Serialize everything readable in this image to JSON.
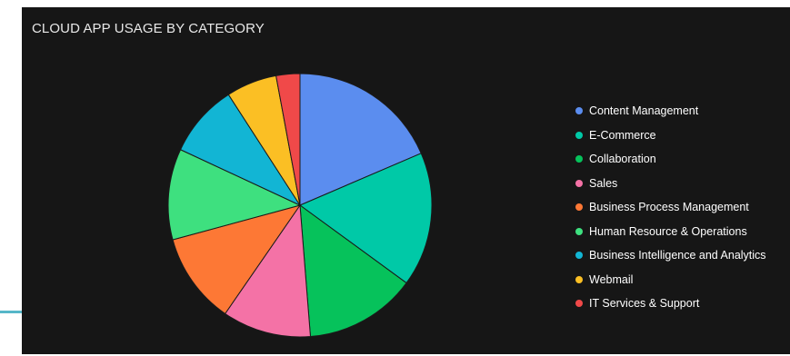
{
  "panel": {
    "title": "CLOUD APP USAGE BY CATEGORY",
    "background": "#161616"
  },
  "chart_data": {
    "type": "pie",
    "title": "CLOUD APP USAGE BY CATEGORY",
    "legend_position": "right",
    "start_angle": "12 o'clock, clockwise",
    "slices": [
      {
        "label": "Content Management",
        "value": 19.1,
        "color": "#5b8def"
      },
      {
        "label": "E-Commerce",
        "value": 17.0,
        "color": "#00c9a7"
      },
      {
        "label": "Collaboration",
        "value": 14.1,
        "color": "#06c25b"
      },
      {
        "label": "Sales",
        "value": 11.2,
        "color": "#f472a6"
      },
      {
        "label": "Business Process Management",
        "value": 11.5,
        "color": "#fd7835"
      },
      {
        "label": "Human Resource & Operations",
        "value": 11.5,
        "color": "#3ee07f"
      },
      {
        "label": "Business Intelligence and Analytics",
        "value": 9.2,
        "color": "#12b5d4"
      },
      {
        "label": "Webmail",
        "value": 6.4,
        "color": "#fbbf24"
      },
      {
        "label": "IT Services & Support",
        "value": 3.0,
        "color": "#f04949"
      }
    ]
  }
}
